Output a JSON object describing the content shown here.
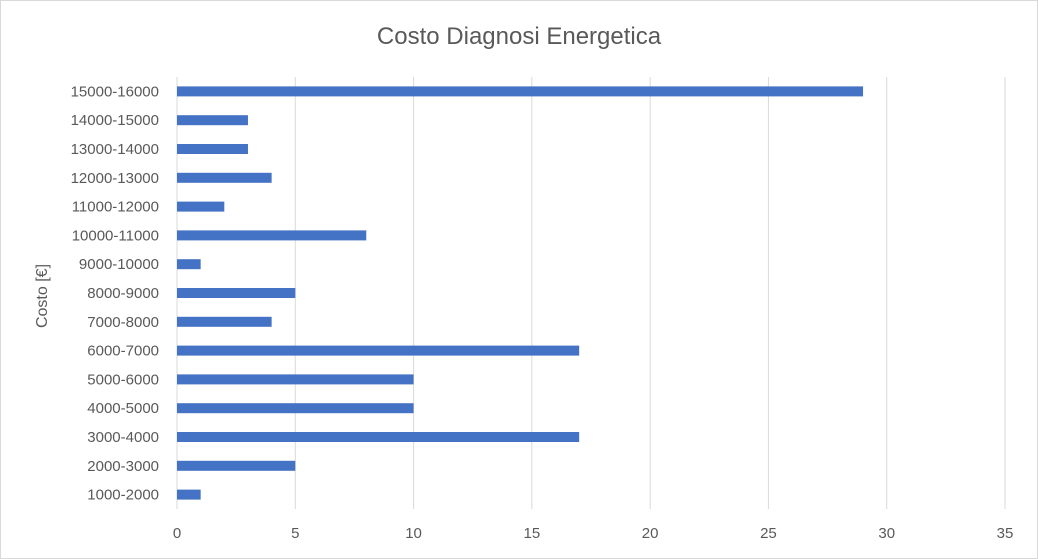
{
  "chart_data": {
    "type": "bar",
    "orientation": "horizontal",
    "title": "Costo Diagnosi Energetica",
    "xlabel": "",
    "ylabel": "Costo [€]",
    "xlim": [
      0,
      35
    ],
    "x_ticks": [
      "0",
      "5",
      "10",
      "15",
      "20",
      "25",
      "30",
      "35"
    ],
    "grid": "vertical",
    "legend": "none",
    "categories": [
      "1000-2000",
      "2000-3000",
      "3000-4000",
      "4000-5000",
      "5000-6000",
      "6000-7000",
      "7000-8000",
      "8000-9000",
      "9000-10000",
      "10000-11000",
      "11000-12000",
      "12000-13000",
      "13000-14000",
      "14000-15000",
      "15000-16000"
    ],
    "values": [
      1,
      5,
      17,
      10,
      10,
      17,
      4,
      5,
      1,
      8,
      2,
      4,
      3,
      3,
      29
    ],
    "bar_color": "#4472C4"
  }
}
